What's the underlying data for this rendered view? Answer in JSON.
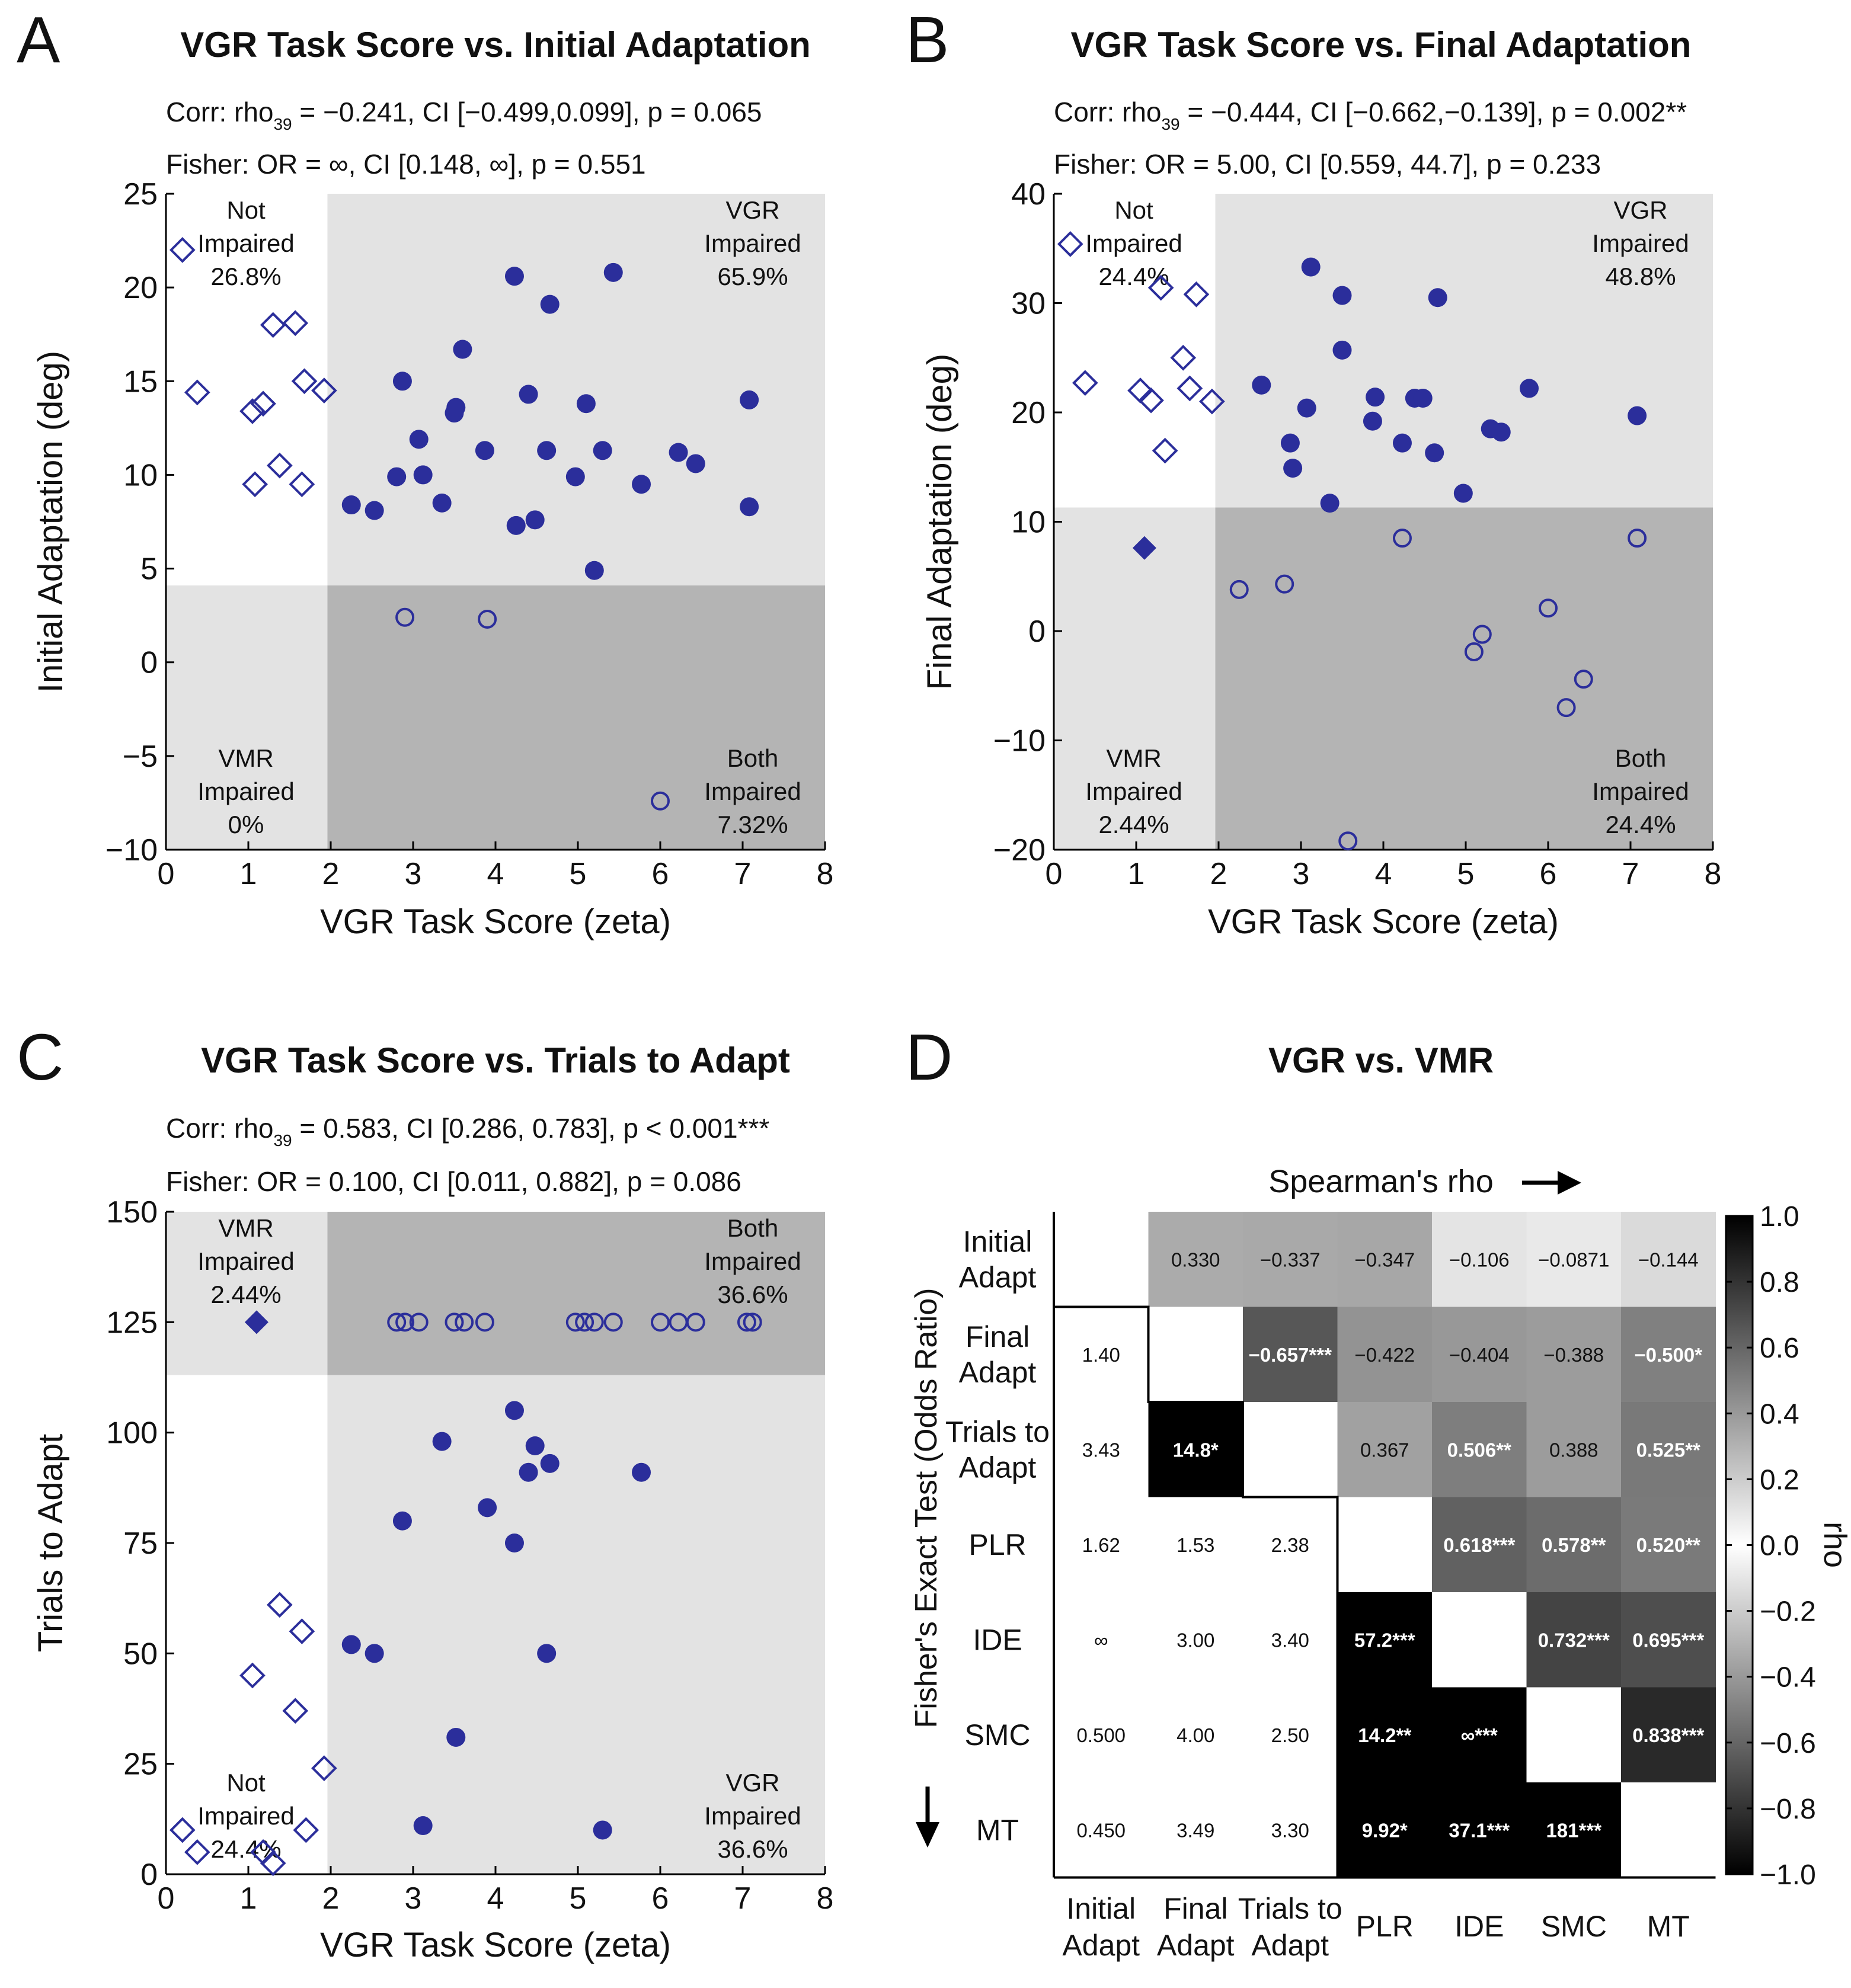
{
  "colors": {
    "marker": "#2b2e9b",
    "light_region": "#e3e3e3",
    "dark_region": "#b4b4b4"
  },
  "chart_data": [
    {
      "type": "scatter",
      "panel": "A",
      "title": "VGR Task Score vs. Initial Adaptation",
      "stats": {
        "corr_pre": "Corr: rho",
        "corr_sub": "39",
        "corr_post": " = −0.241, CI [−0.499,0.099], p = 0.065",
        "fisher": "Fisher: OR = ∞, CI [0.148, ∞], p = 0.551"
      },
      "xlabel": "VGR Task Score (zeta)",
      "ylabel": "Initial Adaptation (deg)",
      "xlim": [
        0,
        8
      ],
      "ylim": [
        -10,
        25
      ],
      "xticks": [
        0,
        1,
        2,
        3,
        4,
        5,
        6,
        7,
        8
      ],
      "yticks": [
        -10,
        -5,
        0,
        5,
        10,
        15,
        20,
        25
      ],
      "ytick_labels": [
        "−10",
        "−5",
        "0",
        "5",
        "10",
        "15",
        "20",
        "25"
      ],
      "x_threshold": 1.96,
      "y_threshold": 4.1,
      "impaired_side": "low",
      "regions": {
        "top_left": [
          "Not",
          "Impaired",
          "26.8%"
        ],
        "top_right": [
          "VGR",
          "Impaired",
          "65.9%"
        ],
        "bottom_left": [
          "VMR",
          "Impaired",
          "0%"
        ],
        "bottom_right": [
          "Both",
          "Impaired",
          "7.32%"
        ]
      },
      "points": [
        [
          0.2,
          22,
          "d"
        ],
        [
          0.38,
          14.4,
          "d"
        ],
        [
          1.05,
          13.4,
          "d"
        ],
        [
          1.18,
          13.8,
          "d"
        ],
        [
          1.3,
          18,
          "d"
        ],
        [
          1.57,
          18.1,
          "d"
        ],
        [
          1.68,
          15,
          "d"
        ],
        [
          1.92,
          14.5,
          "d"
        ],
        [
          1.08,
          9.5,
          "d"
        ],
        [
          1.38,
          10.5,
          "d"
        ],
        [
          1.65,
          9.5,
          "d"
        ],
        [
          2.25,
          8.4,
          "c"
        ],
        [
          2.53,
          8.1,
          "c"
        ],
        [
          2.8,
          9.9,
          "c"
        ],
        [
          2.87,
          15,
          "c"
        ],
        [
          3.07,
          11.9,
          "c"
        ],
        [
          3.12,
          10,
          "c"
        ],
        [
          3.35,
          8.5,
          "c"
        ],
        [
          3.5,
          13.3,
          "c"
        ],
        [
          3.52,
          13.6,
          "c"
        ],
        [
          3.6,
          16.7,
          "c"
        ],
        [
          3.87,
          11.3,
          "c"
        ],
        [
          4.23,
          20.6,
          "c"
        ],
        [
          4.25,
          7.3,
          "c"
        ],
        [
          4.4,
          14.3,
          "c"
        ],
        [
          4.48,
          7.6,
          "c"
        ],
        [
          4.62,
          11.3,
          "c"
        ],
        [
          4.66,
          19.1,
          "c"
        ],
        [
          4.97,
          9.9,
          "c"
        ],
        [
          5.1,
          13.8,
          "c"
        ],
        [
          5.2,
          4.9,
          "c"
        ],
        [
          5.3,
          11.3,
          "c"
        ],
        [
          5.43,
          20.8,
          "c"
        ],
        [
          5.77,
          9.5,
          "c"
        ],
        [
          6.22,
          11.2,
          "c"
        ],
        [
          6.43,
          10.6,
          "c"
        ],
        [
          7.08,
          14,
          "c"
        ],
        [
          7.08,
          8.3,
          "c"
        ],
        [
          2.9,
          2.4,
          "o"
        ],
        [
          3.9,
          2.3,
          "o"
        ],
        [
          6.0,
          -7.4,
          "o"
        ]
      ]
    },
    {
      "type": "scatter",
      "panel": "B",
      "title": "VGR Task Score vs. Final Adaptation",
      "stats": {
        "corr_pre": "Corr: rho",
        "corr_sub": "39",
        "corr_post": " = −0.444, CI [−0.662,−0.139], p = 0.002**",
        "fisher": "Fisher: OR = 5.00, CI [0.559, 44.7], p = 0.233"
      },
      "xlabel": "VGR Task Score (zeta)",
      "ylabel": "Final Adaptation (deg)",
      "xlim": [
        0,
        8
      ],
      "ylim": [
        -20,
        40
      ],
      "xticks": [
        0,
        1,
        2,
        3,
        4,
        5,
        6,
        7,
        8
      ],
      "yticks": [
        -20,
        -10,
        0,
        10,
        20,
        30,
        40
      ],
      "ytick_labels": [
        "−20",
        "−10",
        "0",
        "10",
        "20",
        "30",
        "40"
      ],
      "x_threshold": 1.96,
      "y_threshold": 11.3,
      "impaired_side": "low",
      "regions": {
        "top_left": [
          "Not",
          "Impaired",
          "24.4%"
        ],
        "top_right": [
          "VGR",
          "Impaired",
          "48.8%"
        ],
        "bottom_left": [
          "VMR",
          "Impaired",
          "2.44%"
        ],
        "bottom_right": [
          "Both",
          "Impaired",
          "24.4%"
        ]
      },
      "points": [
        [
          0.2,
          35.4,
          "d"
        ],
        [
          0.38,
          22.7,
          "d"
        ],
        [
          1.05,
          22,
          "d"
        ],
        [
          1.18,
          21.1,
          "d"
        ],
        [
          1.3,
          31.4,
          "d"
        ],
        [
          1.35,
          16.5,
          "d"
        ],
        [
          1.57,
          25,
          "d"
        ],
        [
          1.65,
          22.2,
          "d"
        ],
        [
          1.73,
          30.8,
          "d"
        ],
        [
          1.92,
          21,
          "d"
        ],
        [
          1.1,
          7.6,
          "D"
        ],
        [
          2.52,
          22.5,
          "c"
        ],
        [
          2.87,
          17.2,
          "c"
        ],
        [
          2.9,
          14.9,
          "c"
        ],
        [
          3.07,
          20.4,
          "c"
        ],
        [
          3.12,
          33.3,
          "c"
        ],
        [
          3.35,
          11.7,
          "c"
        ],
        [
          3.5,
          30.7,
          "c"
        ],
        [
          3.5,
          25.7,
          "c"
        ],
        [
          3.87,
          19.2,
          "c"
        ],
        [
          3.9,
          21.4,
          "c"
        ],
        [
          4.23,
          17.2,
          "c"
        ],
        [
          4.38,
          21.3,
          "c"
        ],
        [
          4.48,
          21.3,
          "c"
        ],
        [
          4.62,
          16.3,
          "c"
        ],
        [
          4.66,
          30.5,
          "c"
        ],
        [
          4.97,
          12.6,
          "c"
        ],
        [
          5.3,
          18.5,
          "c"
        ],
        [
          5.43,
          18.2,
          "c"
        ],
        [
          5.77,
          22.2,
          "c"
        ],
        [
          7.08,
          19.7,
          "c"
        ],
        [
          2.25,
          3.8,
          "o"
        ],
        [
          2.8,
          4.3,
          "o"
        ],
        [
          3.57,
          -19.2,
          "o"
        ],
        [
          4.23,
          8.5,
          "o"
        ],
        [
          5.1,
          -1.9,
          "o"
        ],
        [
          5.2,
          -0.3,
          "o"
        ],
        [
          6.0,
          2.1,
          "o"
        ],
        [
          6.22,
          -7.0,
          "o"
        ],
        [
          6.43,
          -4.4,
          "o"
        ],
        [
          7.08,
          8.5,
          "o"
        ]
      ]
    },
    {
      "type": "scatter",
      "panel": "C",
      "title": "VGR Task Score vs. Trials to Adapt",
      "stats": {
        "corr_pre": "Corr: rho",
        "corr_sub": "39",
        "corr_post": " = 0.583, CI [0.286, 0.783], p < 0.001***",
        "fisher": "Fisher: OR = 0.100, CI [0.011, 0.882], p = 0.086"
      },
      "xlabel": "VGR Task Score (zeta)",
      "ylabel": "Trials to Adapt",
      "xlim": [
        0,
        8
      ],
      "ylim": [
        0,
        150
      ],
      "xticks": [
        0,
        1,
        2,
        3,
        4,
        5,
        6,
        7,
        8
      ],
      "yticks": [
        0,
        25,
        50,
        75,
        100,
        125,
        150
      ],
      "ytick_labels": [
        "0",
        "25",
        "50",
        "75",
        "100",
        "125",
        "150"
      ],
      "x_threshold": 1.96,
      "y_threshold": 113,
      "impaired_side": "high",
      "regions": {
        "top_left": [
          "VMR",
          "Impaired",
          "2.44%"
        ],
        "top_right": [
          "Both",
          "Impaired",
          "36.6%"
        ],
        "bottom_left": [
          "Not",
          "Impaired",
          "24.4%"
        ],
        "bottom_right": [
          "VGR",
          "Impaired",
          "36.6%"
        ]
      },
      "points": [
        [
          0.2,
          10,
          "d"
        ],
        [
          0.38,
          5,
          "d"
        ],
        [
          1.05,
          45,
          "d"
        ],
        [
          1.18,
          5,
          "d"
        ],
        [
          1.3,
          2.5,
          "d"
        ],
        [
          1.38,
          61,
          "d"
        ],
        [
          1.57,
          37,
          "d"
        ],
        [
          1.65,
          55,
          "d"
        ],
        [
          1.7,
          10,
          "d"
        ],
        [
          1.92,
          24,
          "d"
        ],
        [
          1.1,
          125,
          "D"
        ],
        [
          2.25,
          52,
          "c"
        ],
        [
          2.53,
          50,
          "c"
        ],
        [
          2.87,
          80,
          "c"
        ],
        [
          3.12,
          11,
          "c"
        ],
        [
          3.35,
          98,
          "c"
        ],
        [
          3.52,
          31,
          "c"
        ],
        [
          3.9,
          83,
          "c"
        ],
        [
          4.23,
          105,
          "c"
        ],
        [
          4.23,
          75,
          "c"
        ],
        [
          4.4,
          91,
          "c"
        ],
        [
          4.48,
          97,
          "c"
        ],
        [
          4.62,
          50,
          "c"
        ],
        [
          4.66,
          93,
          "c"
        ],
        [
          5.3,
          10,
          "c"
        ],
        [
          5.77,
          91,
          "c"
        ],
        [
          2.8,
          125,
          "o"
        ],
        [
          2.9,
          125,
          "o"
        ],
        [
          3.07,
          125,
          "o"
        ],
        [
          3.5,
          125,
          "o"
        ],
        [
          3.62,
          125,
          "o"
        ],
        [
          3.87,
          125,
          "o"
        ],
        [
          4.97,
          125,
          "o"
        ],
        [
          5.08,
          125,
          "o"
        ],
        [
          5.2,
          125,
          "o"
        ],
        [
          5.43,
          125,
          "o"
        ],
        [
          6.0,
          125,
          "o"
        ],
        [
          6.22,
          125,
          "o"
        ],
        [
          6.43,
          125,
          "o"
        ],
        [
          7.05,
          125,
          "o"
        ],
        [
          7.12,
          125,
          "o"
        ]
      ]
    },
    {
      "type": "heatmap",
      "panel": "D",
      "title": "VGR vs. VMR",
      "upper_label": "Spearman's rho",
      "lower_label": "Fisher's Exact Test (Odds Ratio)",
      "colorbar_label": "rho",
      "colorbar_range": [
        -1.0,
        1.0
      ],
      "colorbar_ticks": [
        "1.0",
        "0.8",
        "0.6",
        "0.4",
        "0.2",
        "0.0",
        "−0.2",
        "−0.4",
        "−0.6",
        "−0.8",
        "−1.0"
      ],
      "row_labels": [
        [
          "Initial",
          "Adapt"
        ],
        [
          "Final",
          "Adapt"
        ],
        [
          "Trials to",
          "Adapt"
        ],
        [
          "PLR"
        ],
        [
          "IDE"
        ],
        [
          "SMC"
        ],
        [
          "MT"
        ]
      ],
      "col_labels": [
        [
          "Initial",
          "Adapt"
        ],
        [
          "Final",
          "Adapt"
        ],
        [
          "Trials to",
          "Adapt"
        ],
        [
          "PLR"
        ],
        [
          "IDE"
        ],
        [
          "SMC"
        ],
        [
          "MT"
        ]
      ],
      "cells": [
        [
          [
            "",
            null
          ],
          [
            "0.330",
            0.33
          ],
          [
            "−0.337",
            0.337
          ],
          [
            "−0.347",
            0.347
          ],
          [
            "−0.106",
            0.106
          ],
          [
            "−0.0871",
            0.087
          ],
          [
            "−0.144",
            0.144
          ]
        ],
        [
          [
            "1.40",
            null
          ],
          [
            "",
            null
          ],
          [
            "−0.657***",
            0.657
          ],
          [
            "−0.422",
            0.422
          ],
          [
            "−0.404",
            0.404
          ],
          [
            "−0.388",
            0.388
          ],
          [
            "−0.500*",
            0.5
          ]
        ],
        [
          [
            "3.43",
            null
          ],
          [
            "14.8*",
            1.0
          ],
          [
            "",
            null
          ],
          [
            "0.367",
            0.367
          ],
          [
            "0.506**",
            0.506
          ],
          [
            "0.388",
            0.388
          ],
          [
            "0.525**",
            0.525
          ]
        ],
        [
          [
            "1.62",
            null
          ],
          [
            "1.53",
            null
          ],
          [
            "2.38",
            null
          ],
          [
            "",
            null
          ],
          [
            "0.618***",
            0.618
          ],
          [
            "0.578**",
            0.578
          ],
          [
            "0.520**",
            0.52
          ]
        ],
        [
          [
            "∞",
            null
          ],
          [
            "3.00",
            null
          ],
          [
            "3.40",
            null
          ],
          [
            "57.2***",
            1.0
          ],
          [
            "",
            null
          ],
          [
            "0.732***",
            0.732
          ],
          [
            "0.695***",
            0.695
          ]
        ],
        [
          [
            "0.500",
            null
          ],
          [
            "4.00",
            null
          ],
          [
            "2.50",
            null
          ],
          [
            "14.2**",
            1.0
          ],
          [
            "∞***",
            1.0
          ],
          [
            "",
            null
          ],
          [
            "0.838***",
            0.838
          ]
        ],
        [
          [
            "0.450",
            null
          ],
          [
            "3.49",
            null
          ],
          [
            "3.30",
            null
          ],
          [
            "9.92*",
            1.0
          ],
          [
            "37.1***",
            1.0
          ],
          [
            "181***",
            1.0
          ],
          [
            "",
            null
          ]
        ]
      ]
    }
  ]
}
